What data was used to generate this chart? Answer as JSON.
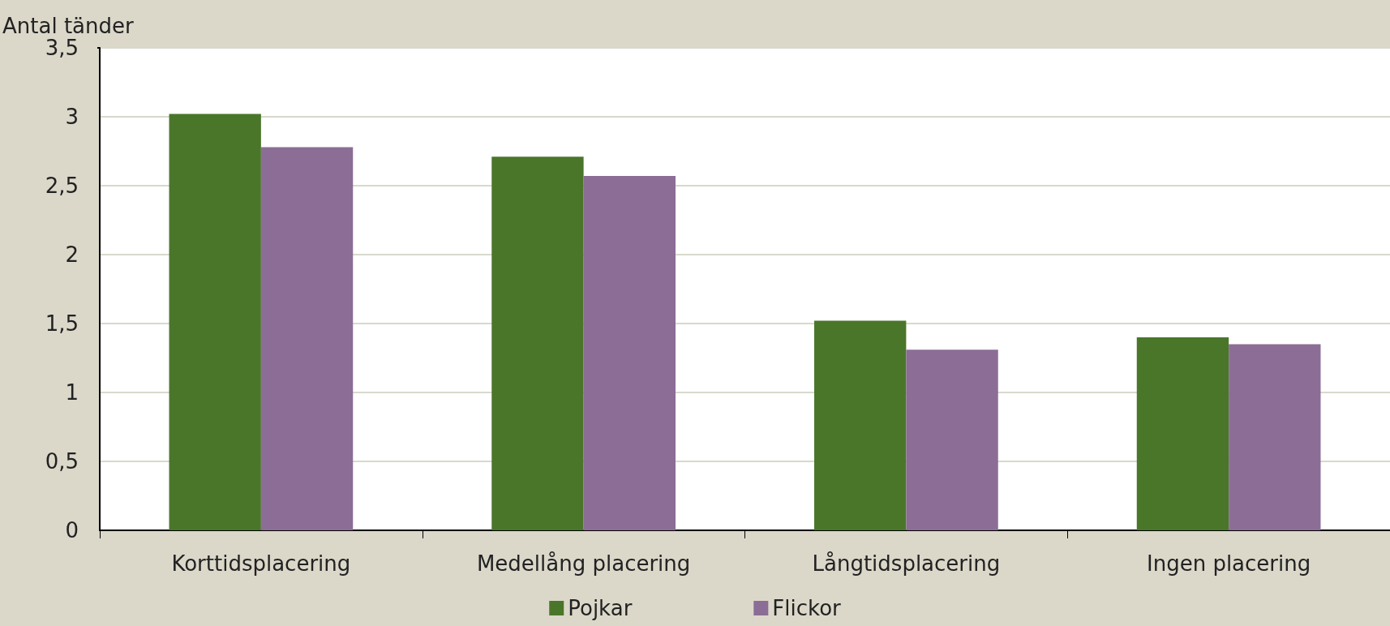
{
  "chart_data": {
    "type": "bar",
    "ylabel": "Antal tänder",
    "categories": [
      "Korttidsplacering",
      "Medellång placering",
      "Långtidsplacering",
      "Ingen placering"
    ],
    "series": [
      {
        "name": "Pojkar",
        "color": "#4a762a",
        "values": [
          3.02,
          2.71,
          1.52,
          1.4
        ]
      },
      {
        "name": "Flickor",
        "color": "#8b6d95",
        "values": [
          2.78,
          2.57,
          1.31,
          1.35
        ]
      }
    ],
    "ylim": [
      0,
      3.5
    ],
    "yticks": [
      0,
      {
        "value": 0.5,
        "label": "0,5"
      },
      1,
      {
        "value": 1.5,
        "label": "1,5"
      },
      2,
      {
        "value": 2.5,
        "label": "2,5"
      },
      3,
      {
        "value": 3.5,
        "label": "3,5"
      }
    ],
    "grid": "y",
    "legend": "bottom"
  }
}
